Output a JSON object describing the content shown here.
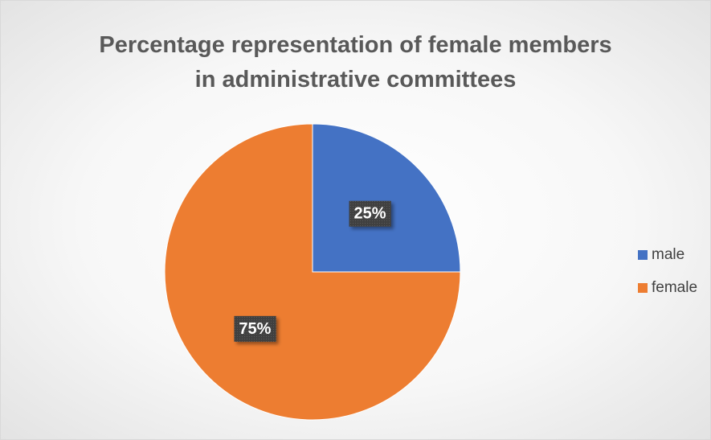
{
  "chart_data": {
    "type": "pie",
    "title": "Percentage representation of female members in administrative committees",
    "categories": [
      "male",
      "female"
    ],
    "values": [
      25,
      75
    ],
    "value_labels": [
      "25%",
      "75%"
    ],
    "colors": [
      "#4472c4",
      "#ed7d31"
    ],
    "legend": "right"
  }
}
